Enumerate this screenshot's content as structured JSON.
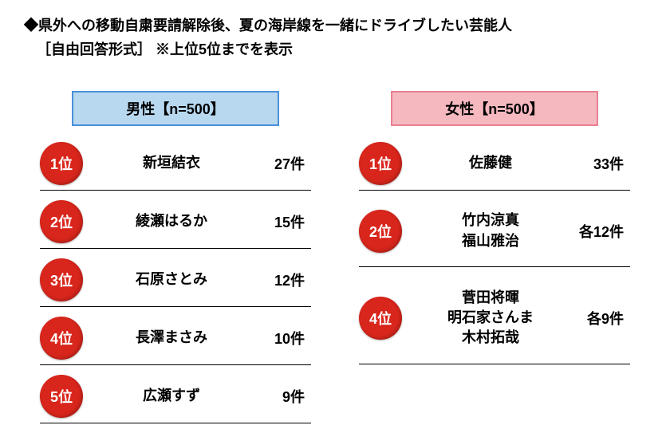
{
  "title": {
    "line1": "◆県外への移動自粛要請解除後、夏の海岸線を一緒にドライブしたい芸能人",
    "line2": "［自由回答形式］ ※上位5位までを表示"
  },
  "columns": {
    "male": {
      "header": "男性【n=500】",
      "header_bg": "#b8d8f0",
      "header_border": "#4a90d9",
      "rows": [
        {
          "rank": "1位",
          "names": [
            "新垣結衣"
          ],
          "count": "27件"
        },
        {
          "rank": "2位",
          "names": [
            "綾瀬はるか"
          ],
          "count": "15件"
        },
        {
          "rank": "3位",
          "names": [
            "石原さとみ"
          ],
          "count": "12件"
        },
        {
          "rank": "4位",
          "names": [
            "長澤まさみ"
          ],
          "count": "10件"
        },
        {
          "rank": "5位",
          "names": [
            "広瀬すず"
          ],
          "count": "9件"
        }
      ]
    },
    "female": {
      "header": "女性【n=500】",
      "header_bg": "#f5b8bf",
      "header_border": "#e88090",
      "rows": [
        {
          "rank": "1位",
          "names": [
            "佐藤健"
          ],
          "count": "33件"
        },
        {
          "rank": "2位",
          "names": [
            "竹内涼真",
            "福山雅治"
          ],
          "count": "各12件"
        },
        {
          "rank": "4位",
          "names": [
            "菅田将暉",
            "明石家さんま",
            "木村拓哉"
          ],
          "count": "各9件"
        }
      ]
    }
  },
  "style": {
    "rank_badge_bg": "#d9261c",
    "rank_badge_fg": "#ffffff",
    "background": "#ffffff",
    "text_color": "#000000",
    "divider_color": "#000000",
    "font_size_title": 18,
    "font_size_body": 18
  }
}
